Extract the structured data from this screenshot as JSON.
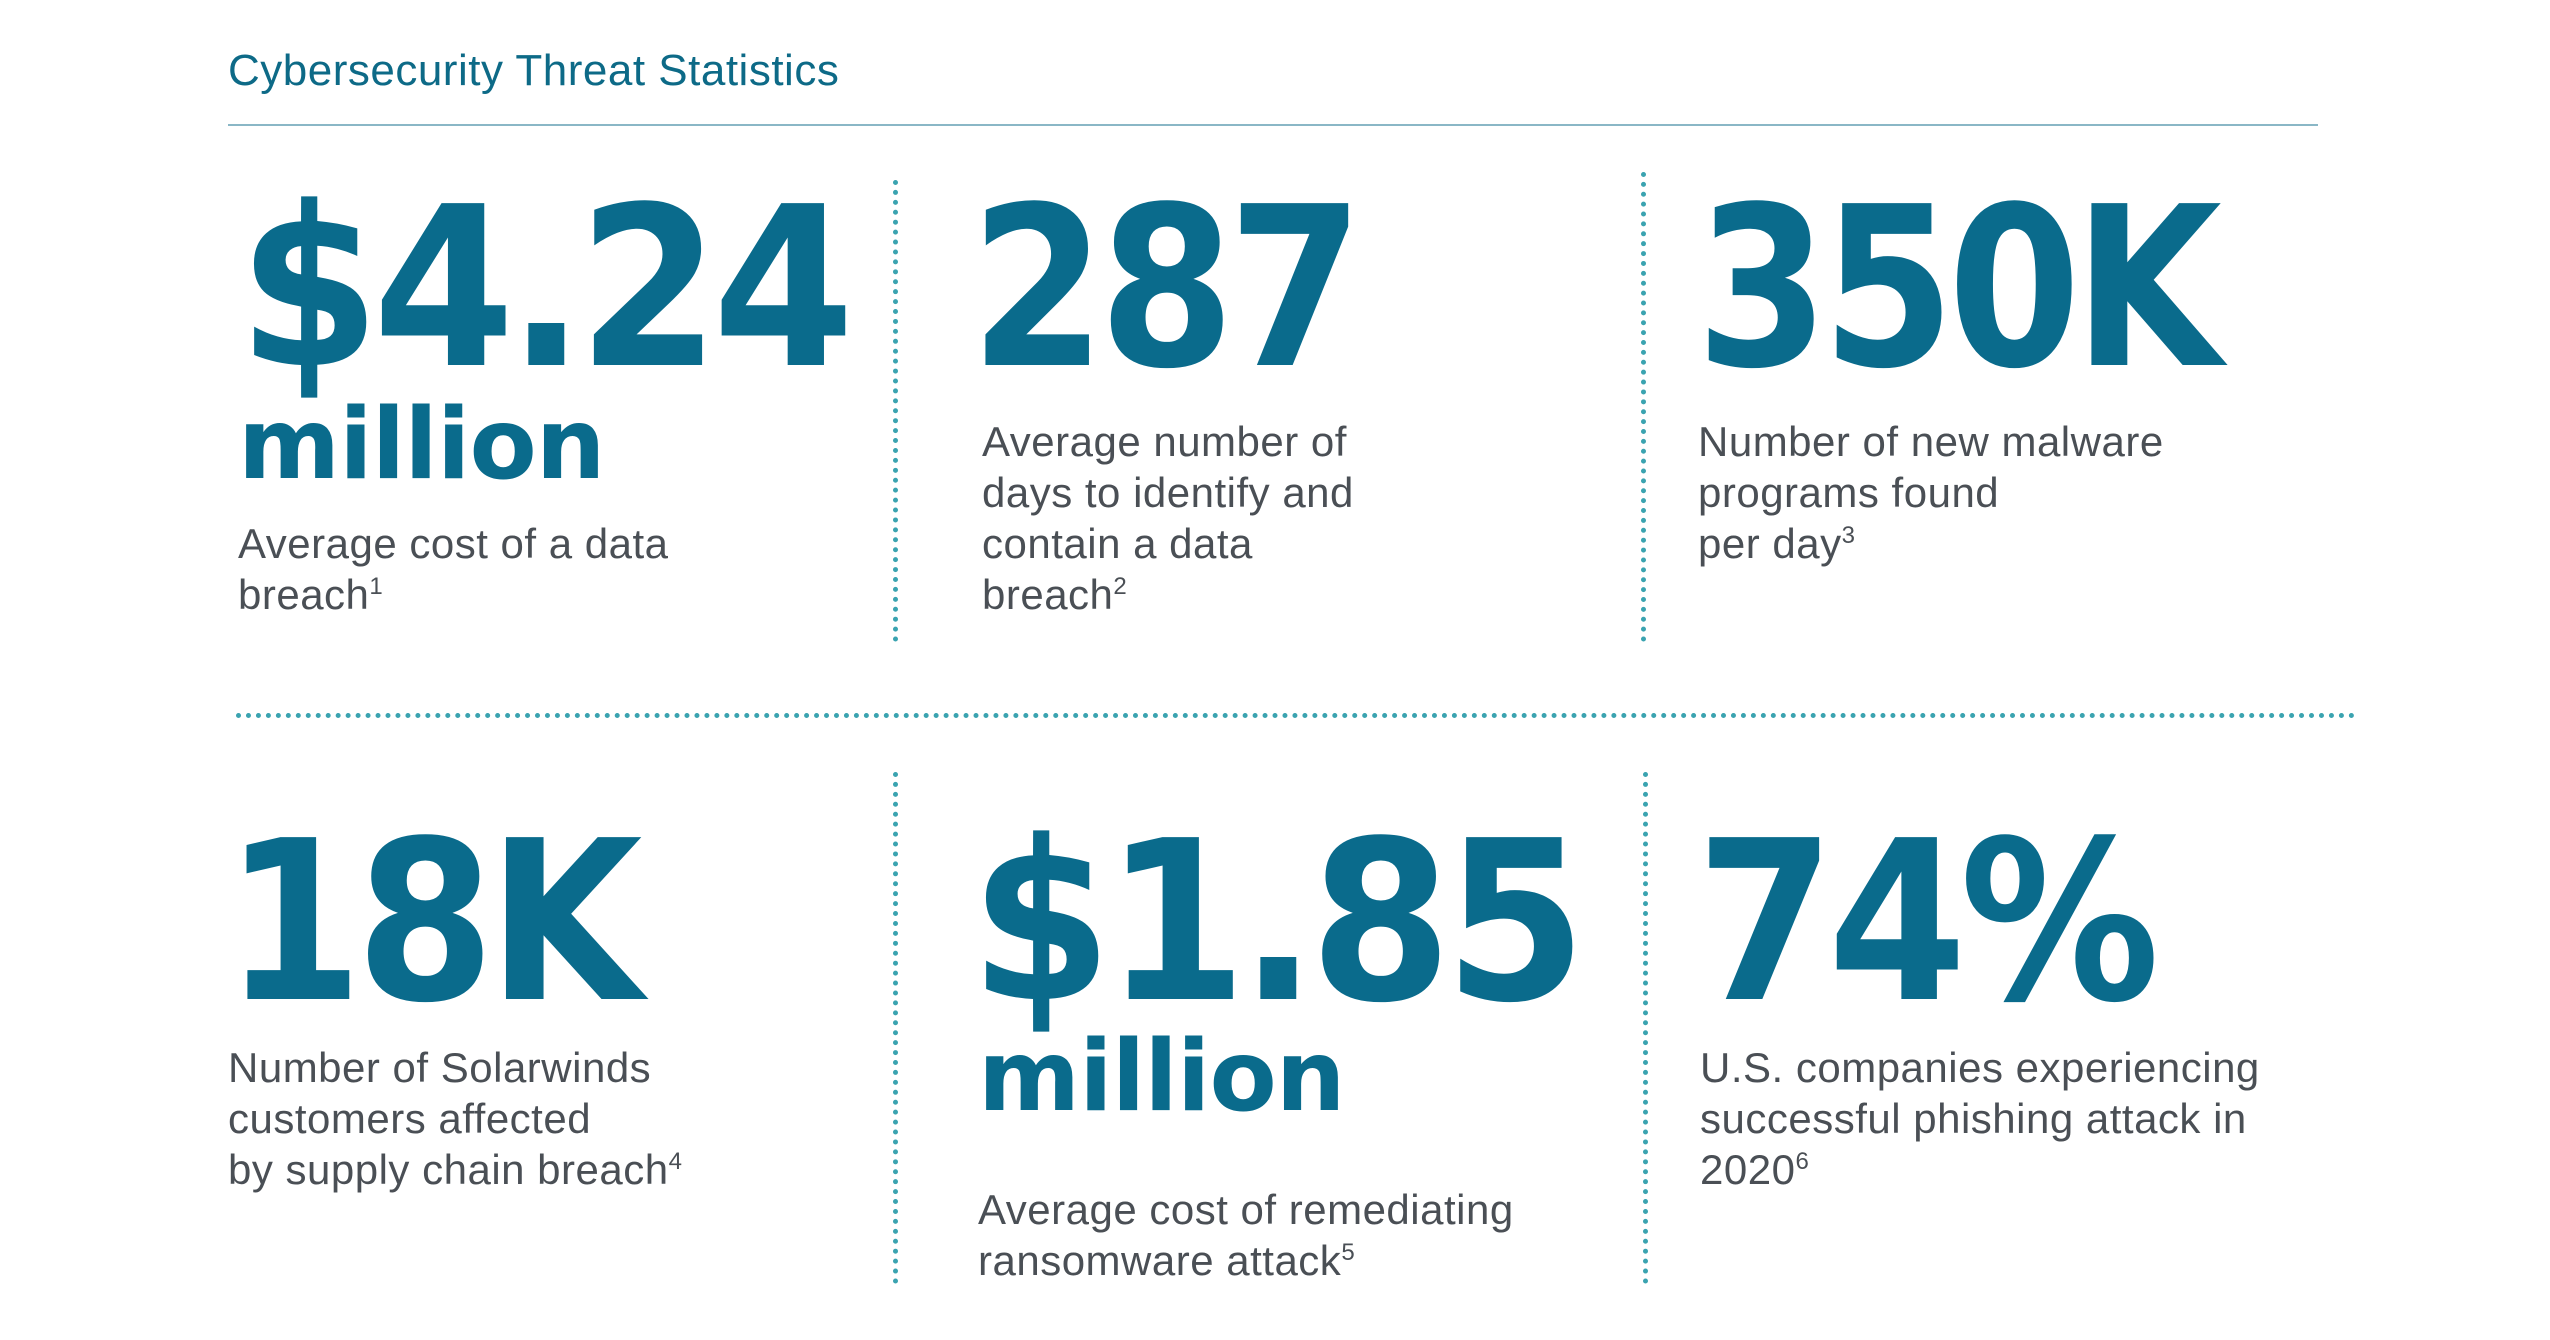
{
  "title": "Cybersecurity Threat Statistics",
  "colors": {
    "accent": "#0a6b8c",
    "body_text": "#4a4f55",
    "divider": "#3aa3b0",
    "rule": "#8ab7c6"
  },
  "stats": [
    {
      "value": "$4.24",
      "unit": "million",
      "description_lines": [
        "Average cost of a data",
        "breach"
      ],
      "footnote": "1"
    },
    {
      "value": "287",
      "unit": "",
      "description_lines": [
        "Average number of",
        "days to identify and",
        "contain a data",
        "breach"
      ],
      "footnote": "2"
    },
    {
      "value": "350K",
      "unit": "",
      "description_lines": [
        "Number of new malware",
        "programs found",
        "per day"
      ],
      "footnote": "3"
    },
    {
      "value": "18K",
      "unit": "",
      "description_lines": [
        "Number of Solarwinds",
        "customers affected",
        "by supply chain breach"
      ],
      "footnote": "4"
    },
    {
      "value": "$1.85",
      "unit": "million",
      "description_lines": [
        "Average cost of remediating",
        "ransomware attack"
      ],
      "footnote": "5"
    },
    {
      "value": "74%",
      "unit": "",
      "description_lines": [
        "U.S. companies experiencing",
        "successful phishing attack in",
        "2020"
      ],
      "footnote": "6"
    }
  ]
}
